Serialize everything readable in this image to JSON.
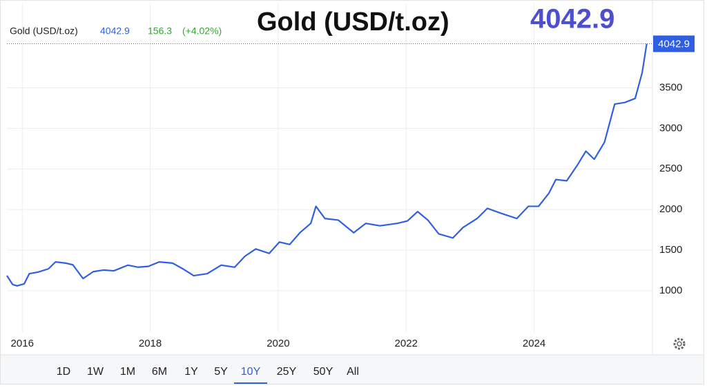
{
  "chart_data": {
    "type": "line",
    "title": "Gold (USD/t.oz)",
    "headline_value": "4042.9",
    "change": "156.3",
    "change_pct": "(+4.02%)",
    "x": [
      2015.76,
      2015.85,
      2015.92,
      2016.03,
      2016.11,
      2016.25,
      2016.41,
      2016.52,
      2016.68,
      2016.79,
      2016.95,
      2017.11,
      2017.27,
      2017.43,
      2017.65,
      2017.81,
      2017.97,
      2018.14,
      2018.35,
      2018.51,
      2018.68,
      2018.89,
      2019.11,
      2019.32,
      2019.48,
      2019.65,
      2019.86,
      2020.02,
      2020.18,
      2020.34,
      2020.51,
      2020.59,
      2020.73,
      2020.94,
      2021.18,
      2021.37,
      2021.59,
      2021.86,
      2022.02,
      2022.18,
      2022.34,
      2022.51,
      2022.73,
      2022.89,
      2023.11,
      2023.27,
      2023.48,
      2023.73,
      2023.91,
      2024.07,
      2024.23,
      2024.34,
      2024.51,
      2024.67,
      2024.81,
      2024.94,
      2025.1,
      2025.26,
      2025.42,
      2025.58,
      2025.69,
      2025.76
    ],
    "series": [
      {
        "name": "Gold (USD/t.oz)",
        "color": "#2f5fe0",
        "values": [
          1186,
          1076,
          1060,
          1085,
          1210,
          1230,
          1270,
          1355,
          1340,
          1320,
          1150,
          1235,
          1255,
          1245,
          1315,
          1290,
          1300,
          1355,
          1340,
          1270,
          1186,
          1210,
          1315,
          1290,
          1425,
          1515,
          1460,
          1600,
          1570,
          1715,
          1830,
          2040,
          1890,
          1870,
          1715,
          1830,
          1800,
          1830,
          1860,
          1975,
          1870,
          1700,
          1650,
          1780,
          1890,
          2015,
          1955,
          1890,
          2040,
          2040,
          2200,
          2370,
          2355,
          2540,
          2720,
          2620,
          2830,
          3300,
          3320,
          3370,
          3690,
          4042.9
        ]
      }
    ],
    "xlim": [
      2015.76,
      2025.85
    ],
    "xticks": [
      2016,
      2018,
      2020,
      2022,
      2024
    ],
    "ylim": [
      490,
      4540
    ],
    "yticks": [
      1000,
      1500,
      2000,
      2500,
      3000,
      3500
    ],
    "grid": true,
    "ranges": [
      "1D",
      "1W",
      "1M",
      "6M",
      "1Y",
      "5Y",
      "10Y",
      "25Y",
      "50Y",
      "All"
    ],
    "active_range": 6
  }
}
